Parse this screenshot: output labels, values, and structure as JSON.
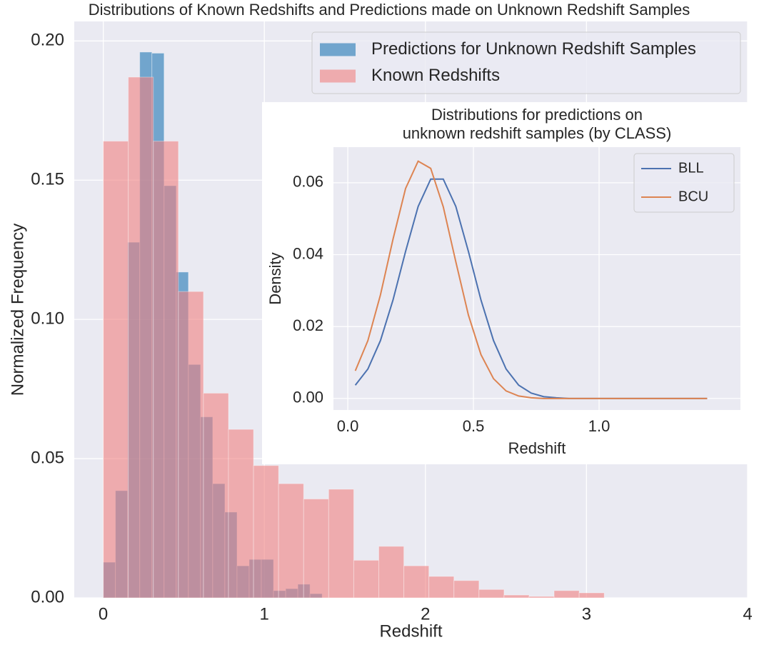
{
  "chart_data": [
    {
      "type": "histogram",
      "title": "Distributions of Known Redshifts and Predictions made on Unknown Redshift Samples",
      "xlabel": "Redshift",
      "ylabel": "Normalized Frequency",
      "xlim": [
        -0.18,
        4.0
      ],
      "ylim": [
        0,
        0.207
      ],
      "xticks": [
        0,
        1,
        2,
        3,
        4
      ],
      "yticks": [
        {
          "value": 0,
          "label": "0.00"
        },
        {
          "value": 0.05,
          "label": "0.05"
        },
        {
          "value": 0.1,
          "label": "0.10"
        },
        {
          "value": 0.15,
          "label": "0.15"
        },
        {
          "value": 0.2,
          "label": "0.20"
        }
      ],
      "grid": true,
      "legend": "upper right",
      "series": [
        {
          "name": "Predictions for Unknown Redshift Samples",
          "color": "#1f77b4",
          "bins": [
            0,
            0.0755,
            0.151,
            0.2265,
            0.302,
            0.3775,
            0.453,
            0.5285,
            0.604,
            0.6795,
            0.755,
            0.8305,
            0.906,
            0.9815,
            1.057,
            1.1325,
            1.208,
            1.2835,
            1.359
          ],
          "values": [
            0.0128,
            0.0385,
            0.1277,
            0.196,
            0.1956,
            0.148,
            0.117,
            0.0838,
            0.065,
            0.041,
            0.0308,
            0.0115,
            0.0138,
            0.0138,
            0.0026,
            0.0033,
            0.0049,
            0.0015
          ]
        },
        {
          "name": "Known Redshifts",
          "color": "#f08080",
          "bins": [
            0,
            0.1555,
            0.311,
            0.4665,
            0.622,
            0.7775,
            0.933,
            1.0885,
            1.244,
            1.3995,
            1.555,
            1.7105,
            1.866,
            2.0215,
            2.177,
            2.3325,
            2.488,
            2.6435,
            2.799,
            2.9545,
            3.11
          ],
          "values": [
            0.164,
            0.187,
            0.164,
            0.11,
            0.0735,
            0.0605,
            0.0475,
            0.041,
            0.0355,
            0.039,
            0.0135,
            0.0185,
            0.0115,
            0.0077,
            0.0062,
            0.003,
            0.001,
            0.0005,
            0.0026,
            0.0018
          ]
        }
      ]
    },
    {
      "type": "line",
      "title": [
        "Distributions for predictions on",
        "unknown redshift samples (by CLASS)"
      ],
      "xlabel": "Redshift",
      "ylabel": "Density",
      "xlim": [
        -0.057,
        1.5625
      ],
      "ylim": [
        -0.0032,
        0.0699
      ],
      "xticks": [
        {
          "value": 0,
          "label": "0.0"
        },
        {
          "value": 0.5,
          "label": "0.5"
        },
        {
          "value": 1,
          "label": "1.0"
        }
      ],
      "yticks": [
        {
          "value": 0,
          "label": "0.00"
        },
        {
          "value": 0.02,
          "label": "0.02"
        },
        {
          "value": 0.04,
          "label": "0.04"
        },
        {
          "value": 0.06,
          "label": "0.06"
        }
      ],
      "grid": true,
      "legend": "upper right",
      "x": [
        0.03,
        0.08,
        0.13,
        0.18,
        0.23,
        0.28,
        0.33,
        0.38,
        0.43,
        0.48,
        0.53,
        0.58,
        0.63,
        0.68,
        0.73,
        0.78,
        0.83,
        0.88,
        0.93,
        0.98,
        1.03,
        1.08,
        1.13,
        1.18,
        1.23,
        1.28,
        1.33,
        1.38,
        1.43
      ],
      "series": [
        {
          "name": "BLL",
          "color": "#4c72b0",
          "values": [
            0.0037,
            0.0082,
            0.0161,
            0.0274,
            0.0409,
            0.0534,
            0.061,
            0.061,
            0.0534,
            0.0409,
            0.0274,
            0.0161,
            0.0082,
            0.0037,
            0.0015,
            0.0005,
            0.0002,
            0,
            0,
            0,
            0,
            0,
            0,
            0,
            0,
            0,
            0,
            0,
            0
          ]
        },
        {
          "name": "BCU",
          "color": "#dd8452",
          "values": [
            0.0077,
            0.0161,
            0.0288,
            0.0443,
            0.0584,
            0.066,
            0.064,
            0.0533,
            0.038,
            0.0232,
            0.0122,
            0.0055,
            0.0021,
            0.0007,
            0.0002,
            0,
            0,
            0,
            0,
            0,
            0,
            0,
            0,
            0,
            0,
            0,
            0,
            0,
            0
          ]
        }
      ]
    }
  ]
}
